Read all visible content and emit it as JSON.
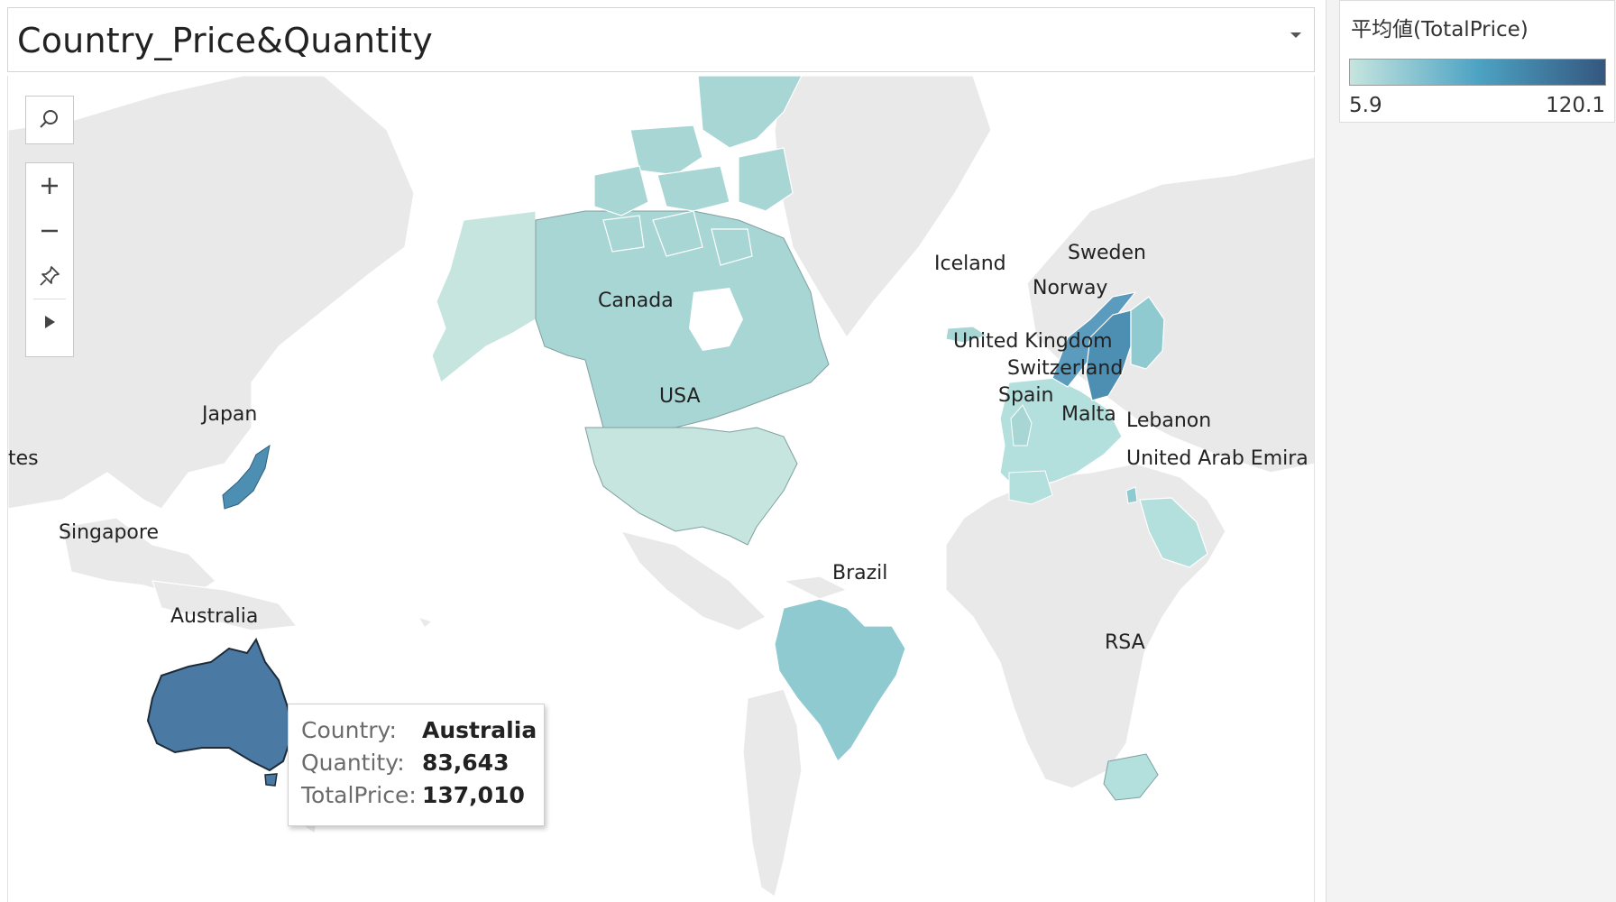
{
  "view": {
    "title": "Country_Price&Quantity",
    "dropdown_icon": "caret-down-icon"
  },
  "legend": {
    "title": "平均値(TotalPrice)",
    "min_label": "5.9",
    "max_label": "120.1",
    "color_low": "#c6e5df",
    "color_mid": "#4da3c4",
    "color_high": "#34577f"
  },
  "map_toolbar": {
    "tools": [
      "search-icon",
      "zoom-in-icon",
      "zoom-out-icon",
      "pin-icon",
      "play-icon"
    ]
  },
  "map": {
    "land_color": "#e9e9e9",
    "ocean_color": "#ffffff",
    "country_labels": {
      "canada": "Canada",
      "usa": "USA",
      "iceland": "Iceland",
      "sweden": "Sweden",
      "norway": "Norway",
      "united_kingdom": "United Kingdom",
      "switzerland": "Switzerland",
      "spain": "Spain",
      "malta": "Malta",
      "lebanon": "Lebanon",
      "uae": "United Arab Emira",
      "japan": "Japan",
      "partial_left": "tes",
      "singapore": "Singapore",
      "australia": "Australia",
      "brazil": "Brazil",
      "rsa": "RSA"
    },
    "country_colors": {
      "canada": "#a8d6d5",
      "canada_arctic": "#a8d6d5",
      "alaska": "#c6e5df",
      "usa": "#c6e5df",
      "brazil": "#8fcad0",
      "sweden": "#4d8fb3",
      "norway": "#5a9bbe",
      "finland": "#8fcad0",
      "europe": "#b3dfdc",
      "iceland": "#a8d6d5",
      "japan": "#4d8fb3",
      "australia": "#4a7aa3",
      "rsa": "#b3dfdc",
      "uae": "#b3dfdc",
      "lebanon": "#8fcad0"
    }
  },
  "tooltip": {
    "rows": [
      {
        "key": "Country:",
        "value": "Australia"
      },
      {
        "key": "Quantity:",
        "value": "83,643"
      },
      {
        "key": "TotalPrice:",
        "value": "137,010"
      }
    ]
  }
}
